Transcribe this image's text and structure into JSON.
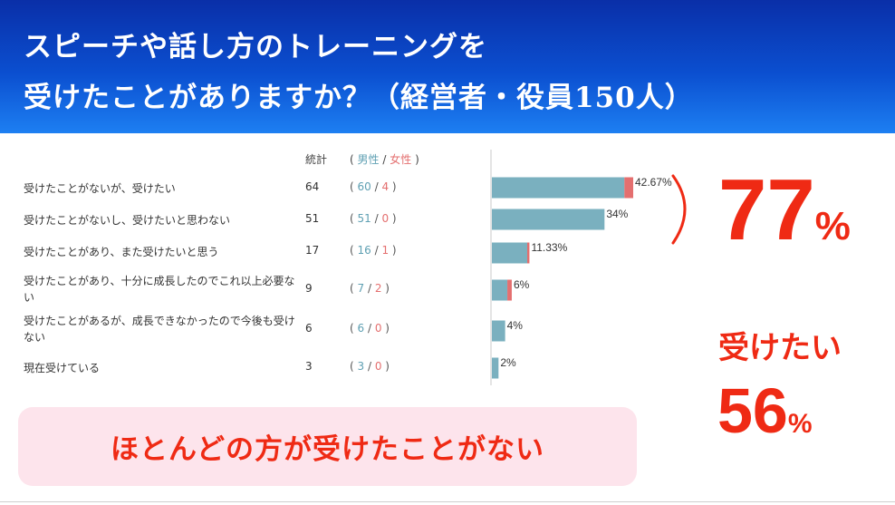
{
  "header": {
    "line1": "スピーチや話し方のトレーニングを",
    "line2": "受けたことがありますか？（経営者・役員150人）"
  },
  "table": {
    "count_header": "統計",
    "split_header": {
      "open": "(",
      "male": "男性",
      "sep": "/",
      "female": "女性",
      "close": ")"
    },
    "rows": [
      {
        "label": "受けたことがないが、受けたい",
        "count": "64",
        "male": "60",
        "female": "4"
      },
      {
        "label": "受けたことがないし、受けたいと思わない",
        "count": "51",
        "male": "51",
        "female": "0"
      },
      {
        "label": "受けたことがあり、また受けたいと思う",
        "count": "17",
        "male": "16",
        "female": "1"
      },
      {
        "label": "受けたことがあり、十分に成長したのでこれ以上必要ない",
        "count": "9",
        "male": "7",
        "female": "2"
      },
      {
        "label": "受けたことがあるが、成長できなかったので今後も受けない",
        "count": "6",
        "male": "6",
        "female": "0"
      },
      {
        "label": "現在受けている",
        "count": "3",
        "male": "3",
        "female": "0"
      }
    ]
  },
  "chart_data": {
    "type": "bar",
    "orientation": "horizontal",
    "stacked": true,
    "categories": [
      "受けたことがないが、受けたい",
      "受けたことがないし、受けたいと思わない",
      "受けたことがあり、また受けたいと思う",
      "受けたことがあり、十分に成長したのでこれ以上必要ない",
      "受けたことがあるが、成長できなかったので今後も受けない",
      "現在受けている"
    ],
    "series": [
      {
        "name": "男性",
        "color": "#7ab0bf",
        "values": [
          60,
          51,
          16,
          7,
          6,
          3
        ]
      },
      {
        "name": "女性",
        "color": "#e46f6f",
        "values": [
          4,
          0,
          1,
          2,
          0,
          0
        ]
      }
    ],
    "data_labels": [
      "42.67%",
      "34%",
      "11.33%",
      "6%",
      "4%",
      "2%"
    ],
    "xlim": [
      0,
      64
    ],
    "grid": false
  },
  "callouts": {
    "big_value": "77",
    "big_unit": "%",
    "want_label": "受けたい",
    "want_value": "56",
    "want_unit": "%"
  },
  "banner": {
    "text": "ほとんどの方が受けたことがない"
  },
  "colors": {
    "accent": "#ef2a14",
    "header_top": "#0a2fa8",
    "header_bottom": "#1d7ff2",
    "banner_bg": "#fde4ec"
  }
}
